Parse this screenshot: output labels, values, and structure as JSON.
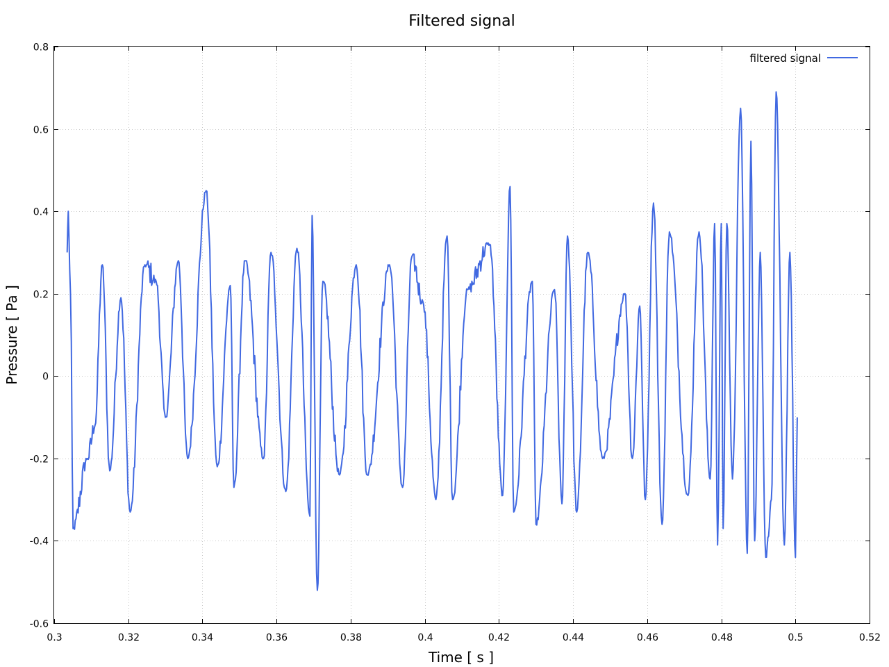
{
  "chart_data": {
    "type": "line",
    "title": "Filtered signal",
    "xlabel": "Time [ s ]",
    "ylabel": "Pressure [ Pa ]",
    "xlim": [
      0.3,
      0.52
    ],
    "ylim": [
      -0.6,
      0.8
    ],
    "xticks": [
      0.3,
      0.32,
      0.34,
      0.36,
      0.38,
      0.4,
      0.42,
      0.44,
      0.46,
      0.48,
      0.5,
      0.52
    ],
    "xtick_labels": [
      "0.3",
      "0.32",
      "0.34",
      "0.36",
      "0.38",
      "0.4",
      "0.42",
      "0.44",
      "0.46",
      "0.48",
      "0.5",
      "0.52"
    ],
    "yticks": [
      -0.6,
      -0.4,
      -0.2,
      0,
      0.2,
      0.4,
      0.6,
      0.8
    ],
    "ytick_labels": [
      "-0.6",
      "-0.4",
      "-0.2",
      "0",
      "0.2",
      "0.4",
      "0.6",
      "0.8"
    ],
    "grid": true,
    "legend": "top-right",
    "series": [
      {
        "name": "filtered signal",
        "color": "#4169e1",
        "x_start": 0.3035,
        "x_step": 0.0002,
        "x_end": 0.5005,
        "landmarks": [
          [
            0.3035,
            0.3
          ],
          [
            0.3038,
            0.4
          ],
          [
            0.3044,
            0.2
          ],
          [
            0.3051,
            -0.37
          ],
          [
            0.309,
            -0.2
          ],
          [
            0.311,
            -0.12
          ],
          [
            0.313,
            0.27
          ],
          [
            0.315,
            -0.23
          ],
          [
            0.318,
            0.19
          ],
          [
            0.3205,
            -0.33
          ],
          [
            0.3245,
            0.27
          ],
          [
            0.3275,
            0.23
          ],
          [
            0.33,
            -0.1
          ],
          [
            0.3335,
            0.28
          ],
          [
            0.336,
            -0.2
          ],
          [
            0.341,
            0.45
          ],
          [
            0.344,
            -0.22
          ],
          [
            0.3475,
            0.22
          ],
          [
            0.3485,
            -0.27
          ],
          [
            0.3515,
            0.28
          ],
          [
            0.3565,
            -0.2
          ],
          [
            0.3585,
            0.3
          ],
          [
            0.3625,
            -0.28
          ],
          [
            0.3655,
            0.31
          ],
          [
            0.369,
            -0.34
          ],
          [
            0.3696,
            0.39
          ],
          [
            0.371,
            -0.52
          ],
          [
            0.3725,
            0.23
          ],
          [
            0.377,
            -0.24
          ],
          [
            0.3815,
            0.27
          ],
          [
            0.3845,
            -0.24
          ],
          [
            0.3905,
            0.27
          ],
          [
            0.394,
            -0.27
          ],
          [
            0.3965,
            0.29
          ],
          [
            0.3995,
            0.18
          ],
          [
            0.403,
            -0.3
          ],
          [
            0.406,
            0.34
          ],
          [
            0.4075,
            -0.3
          ],
          [
            0.4115,
            0.21
          ],
          [
            0.4175,
            0.32
          ],
          [
            0.421,
            -0.29
          ],
          [
            0.423,
            0.46
          ],
          [
            0.424,
            -0.33
          ],
          [
            0.429,
            0.23
          ],
          [
            0.43,
            -0.36
          ],
          [
            0.435,
            0.21
          ],
          [
            0.437,
            -0.31
          ],
          [
            0.4385,
            0.34
          ],
          [
            0.441,
            -0.33
          ],
          [
            0.444,
            0.3
          ],
          [
            0.448,
            -0.2
          ],
          [
            0.454,
            0.2
          ],
          [
            0.456,
            -0.2
          ],
          [
            0.458,
            0.17
          ],
          [
            0.4595,
            -0.3
          ],
          [
            0.4617,
            0.42
          ],
          [
            0.464,
            -0.36
          ],
          [
            0.466,
            0.35
          ],
          [
            0.471,
            -0.29
          ],
          [
            0.474,
            0.35
          ],
          [
            0.477,
            -0.25
          ],
          [
            0.4782,
            0.37
          ],
          [
            0.479,
            -0.41
          ],
          [
            0.48,
            0.37
          ],
          [
            0.4805,
            -0.37
          ],
          [
            0.4815,
            0.37
          ],
          [
            0.483,
            -0.25
          ],
          [
            0.4852,
            0.65
          ],
          [
            0.487,
            -0.43
          ],
          [
            0.488,
            0.57
          ],
          [
            0.489,
            -0.4
          ],
          [
            0.4905,
            0.3
          ],
          [
            0.492,
            -0.44
          ],
          [
            0.4935,
            -0.3
          ],
          [
            0.4948,
            0.69
          ],
          [
            0.497,
            -0.41
          ],
          [
            0.4985,
            0.3
          ],
          [
            0.5,
            -0.44
          ],
          [
            0.5005,
            -0.1
          ]
        ]
      }
    ]
  }
}
